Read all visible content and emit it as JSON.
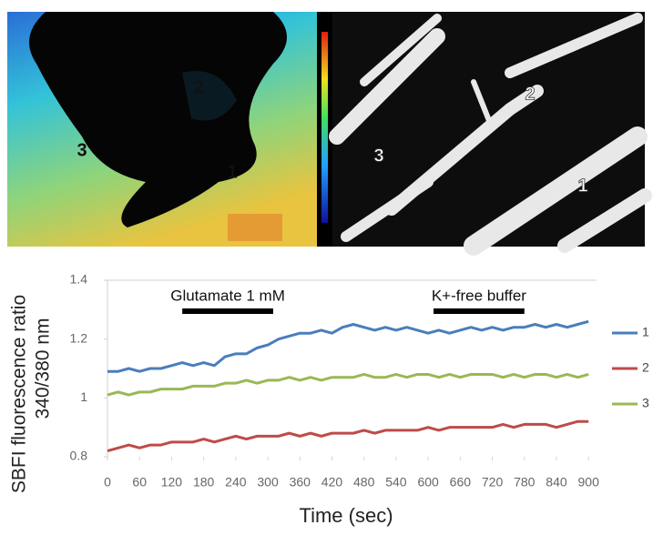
{
  "chart_data": {
    "type": "line",
    "ylabel": [
      "SBFI fluorescence ratio",
      "340/380 nm"
    ],
    "xlabel": "Time (sec)",
    "x": [
      0,
      20,
      40,
      60,
      80,
      100,
      120,
      140,
      160,
      180,
      200,
      220,
      240,
      260,
      280,
      300,
      320,
      340,
      360,
      380,
      400,
      420,
      440,
      460,
      480,
      500,
      520,
      540,
      560,
      580,
      600,
      620,
      640,
      660,
      680,
      700,
      720,
      740,
      760,
      780,
      800,
      820,
      840,
      860,
      880,
      900
    ],
    "series": [
      {
        "name": "1",
        "color": "#4a7ebb",
        "values": [
          1.09,
          1.09,
          1.1,
          1.09,
          1.1,
          1.1,
          1.11,
          1.12,
          1.11,
          1.12,
          1.11,
          1.14,
          1.15,
          1.15,
          1.17,
          1.18,
          1.2,
          1.21,
          1.22,
          1.22,
          1.23,
          1.22,
          1.24,
          1.25,
          1.24,
          1.23,
          1.24,
          1.23,
          1.24,
          1.23,
          1.22,
          1.23,
          1.22,
          1.23,
          1.24,
          1.23,
          1.24,
          1.23,
          1.24,
          1.24,
          1.25,
          1.24,
          1.25,
          1.24,
          1.25,
          1.26
        ]
      },
      {
        "name": "2",
        "color": "#be4b48",
        "values": [
          0.82,
          0.83,
          0.84,
          0.83,
          0.84,
          0.84,
          0.85,
          0.85,
          0.85,
          0.86,
          0.85,
          0.86,
          0.87,
          0.86,
          0.87,
          0.87,
          0.87,
          0.88,
          0.87,
          0.88,
          0.87,
          0.88,
          0.88,
          0.88,
          0.89,
          0.88,
          0.89,
          0.89,
          0.89,
          0.89,
          0.9,
          0.89,
          0.9,
          0.9,
          0.9,
          0.9,
          0.9,
          0.91,
          0.9,
          0.91,
          0.91,
          0.91,
          0.9,
          0.91,
          0.92,
          0.92
        ]
      },
      {
        "name": "3",
        "color": "#98b954",
        "values": [
          1.01,
          1.02,
          1.01,
          1.02,
          1.02,
          1.03,
          1.03,
          1.03,
          1.04,
          1.04,
          1.04,
          1.05,
          1.05,
          1.06,
          1.05,
          1.06,
          1.06,
          1.07,
          1.06,
          1.07,
          1.06,
          1.07,
          1.07,
          1.07,
          1.08,
          1.07,
          1.07,
          1.08,
          1.07,
          1.08,
          1.08,
          1.07,
          1.08,
          1.07,
          1.08,
          1.08,
          1.08,
          1.07,
          1.08,
          1.07,
          1.08,
          1.08,
          1.07,
          1.08,
          1.07,
          1.08
        ]
      }
    ],
    "xlim": [
      0,
      915
    ],
    "xticks": [
      0,
      60,
      120,
      180,
      240,
      300,
      360,
      420,
      480,
      540,
      600,
      660,
      720,
      780,
      840,
      900
    ],
    "ylim": [
      0.8,
      1.4
    ],
    "yticks": [
      0.8,
      1,
      1.2,
      1.4
    ],
    "annotations": [
      {
        "text": "Glutamate 1 mM",
        "start": 140,
        "end": 310
      },
      {
        "text": "K+-free buffer",
        "start": 610,
        "end": 780
      }
    ],
    "legend": "right"
  },
  "panels": {
    "left_labels": [
      "2",
      "3",
      "1"
    ],
    "right_labels": [
      "2",
      "3",
      "1"
    ]
  }
}
